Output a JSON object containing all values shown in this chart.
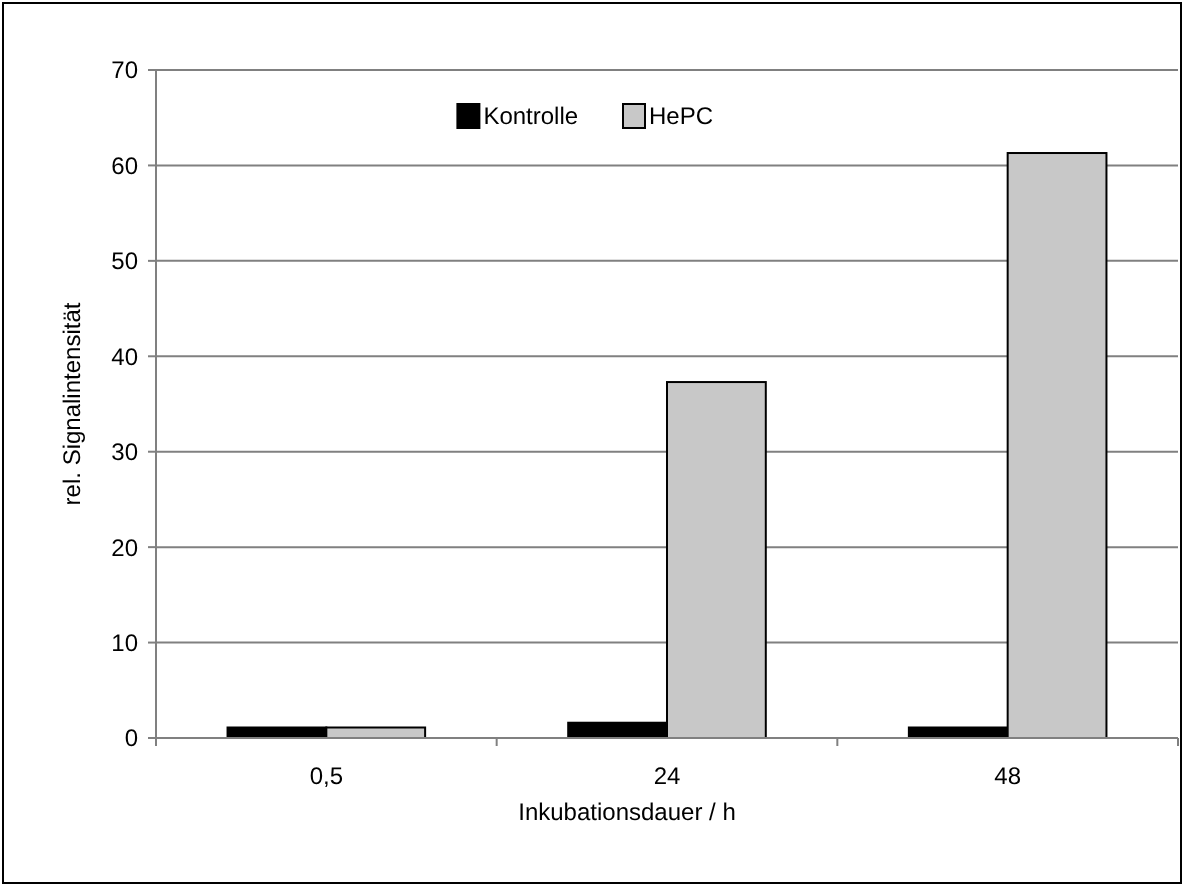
{
  "chart_data": {
    "type": "bar",
    "xlabel": "Inkubationsdauer / h",
    "ylabel": "rel. Signalintensität",
    "categories": [
      "0,5",
      "24",
      "48"
    ],
    "series": [
      {
        "name": "Kontrolle",
        "color": "#000000",
        "values": [
          1.1,
          1.6,
          1.1
        ]
      },
      {
        "name": "HePC",
        "color": "#c8c8c8",
        "values": [
          1.1,
          37.3,
          61.3
        ]
      }
    ],
    "ylim": [
      0,
      70
    ],
    "yticks": [
      0,
      10,
      20,
      30,
      40,
      50,
      60,
      70
    ],
    "grid": "y",
    "legend": "top"
  }
}
